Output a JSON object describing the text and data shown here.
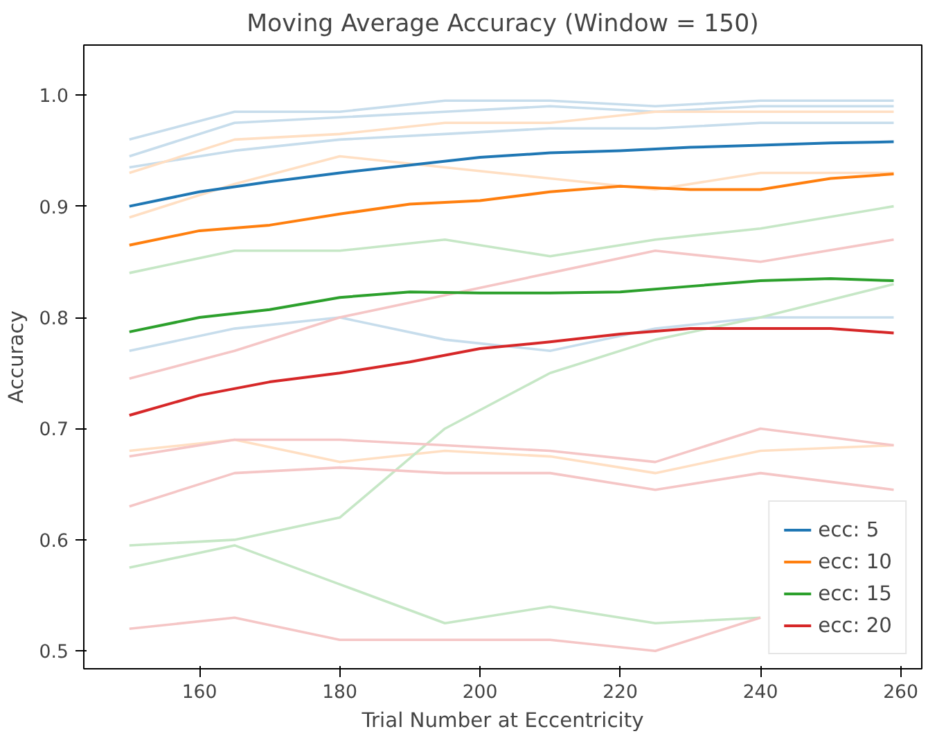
{
  "chart_data": {
    "type": "line",
    "title": "Moving Average Accuracy (Window = 150)",
    "xlabel": "Trial Number at Eccentricity",
    "ylabel": "Accuracy",
    "xlim": [
      143.5,
      263
    ],
    "ylim": [
      0.484,
      1.045
    ],
    "xticks": [
      160,
      180,
      200,
      220,
      240,
      260
    ],
    "yticks": [
      0.5,
      0.6,
      0.7,
      0.8,
      0.9,
      {
        "value": 1.0,
        "label": "1.0"
      }
    ],
    "grid": false,
    "legend": "bottom right",
    "series": [
      {
        "color": "#c7ddec",
        "x": [
          150,
          165,
          180,
          195,
          210,
          225,
          240,
          259
        ],
        "values": [
          0.96,
          0.985,
          0.985,
          0.995,
          0.995,
          0.99,
          0.995,
          0.995
        ]
      },
      {
        "color": "#c7ddec",
        "x": [
          150,
          165,
          180,
          195,
          210,
          225,
          240,
          259
        ],
        "values": [
          0.945,
          0.975,
          0.98,
          0.985,
          0.99,
          0.985,
          0.99,
          0.99
        ]
      },
      {
        "color": "#c7ddec",
        "x": [
          150,
          165,
          180,
          195,
          210,
          225,
          240,
          259
        ],
        "values": [
          0.935,
          0.95,
          0.96,
          0.965,
          0.97,
          0.97,
          0.975,
          0.975
        ]
      },
      {
        "color": "#c7ddec",
        "x": [
          150,
          165,
          180,
          195,
          210,
          225,
          240,
          259
        ],
        "values": [
          0.77,
          0.79,
          0.8,
          0.78,
          0.77,
          0.79,
          0.8,
          0.8
        ]
      },
      {
        "color": "#ffdfc3",
        "x": [
          150,
          165,
          180,
          195,
          210,
          225,
          240,
          259
        ],
        "values": [
          0.93,
          0.96,
          0.965,
          0.975,
          0.975,
          0.985,
          0.985,
          0.985
        ]
      },
      {
        "color": "#ffdfc3",
        "x": [
          150,
          165,
          180,
          195,
          210,
          225,
          240,
          259
        ],
        "values": [
          0.89,
          0.92,
          0.945,
          0.935,
          0.925,
          0.915,
          0.93,
          0.93
        ]
      },
      {
        "color": "#ffdfc3",
        "x": [
          150,
          165,
          180,
          195,
          210,
          225,
          240,
          259
        ],
        "values": [
          0.68,
          0.69,
          0.67,
          0.68,
          0.675,
          0.66,
          0.68,
          0.685
        ]
      },
      {
        "color": "#c6e7c6",
        "x": [
          150,
          165,
          180,
          195,
          210,
          225,
          240,
          259
        ],
        "values": [
          0.84,
          0.86,
          0.86,
          0.87,
          0.855,
          0.87,
          0.88,
          0.9
        ]
      },
      {
        "color": "#c6e7c6",
        "x": [
          150,
          165,
          180,
          195,
          210,
          225,
          240,
          259
        ],
        "values": [
          0.595,
          0.6,
          0.62,
          0.7,
          0.75,
          0.78,
          0.8,
          0.83
        ]
      },
      {
        "color": "#c6e7c6",
        "x": [
          150,
          165,
          180,
          195,
          210,
          225,
          240
        ],
        "values": [
          0.575,
          0.595,
          0.56,
          0.525,
          0.54,
          0.525,
          0.53
        ]
      },
      {
        "color": "#f5c6c6",
        "x": [
          150,
          165,
          180,
          195,
          210,
          225,
          240
        ],
        "values": [
          0.52,
          0.53,
          0.51,
          0.51,
          0.51,
          0.5,
          0.53
        ]
      },
      {
        "color": "#f5c6c6",
        "x": [
          150,
          165,
          180,
          195,
          210,
          225,
          240,
          259
        ],
        "values": [
          0.63,
          0.66,
          0.665,
          0.66,
          0.66,
          0.645,
          0.66,
          0.645
        ]
      },
      {
        "color": "#f5c6c6",
        "x": [
          150,
          165,
          180,
          195,
          210,
          225,
          240,
          259
        ],
        "values": [
          0.675,
          0.69,
          0.69,
          0.685,
          0.68,
          0.67,
          0.7,
          0.685
        ]
      },
      {
        "color": "#f5c6c6",
        "x": [
          150,
          165,
          180,
          195,
          210,
          225,
          240,
          259
        ],
        "values": [
          0.745,
          0.77,
          0.8,
          0.82,
          0.84,
          0.86,
          0.85,
          0.87
        ]
      },
      {
        "name": "ecc: 5",
        "color": "#1f77b4",
        "x": [
          150,
          160,
          170,
          180,
          190,
          200,
          210,
          220,
          230,
          240,
          250,
          259
        ],
        "values": [
          0.9,
          0.913,
          0.922,
          0.93,
          0.937,
          0.944,
          0.948,
          0.95,
          0.953,
          0.955,
          0.957,
          0.958
        ]
      },
      {
        "name": "ecc: 10",
        "color": "#ff7f0e",
        "x": [
          150,
          160,
          170,
          180,
          190,
          200,
          210,
          220,
          230,
          240,
          250,
          259
        ],
        "values": [
          0.865,
          0.878,
          0.883,
          0.893,
          0.902,
          0.905,
          0.913,
          0.918,
          0.915,
          0.915,
          0.925,
          0.929
        ]
      },
      {
        "name": "ecc: 15",
        "color": "#2ca02c",
        "x": [
          150,
          160,
          170,
          180,
          190,
          200,
          210,
          220,
          230,
          240,
          250,
          259
        ],
        "values": [
          0.787,
          0.8,
          0.807,
          0.818,
          0.823,
          0.822,
          0.822,
          0.823,
          0.828,
          0.833,
          0.835,
          0.833
        ]
      },
      {
        "name": "ecc: 20",
        "color": "#d62728",
        "x": [
          150,
          160,
          170,
          180,
          190,
          200,
          210,
          220,
          230,
          240,
          250,
          259
        ],
        "values": [
          0.712,
          0.73,
          0.742,
          0.75,
          0.76,
          0.772,
          0.778,
          0.785,
          0.79,
          0.79,
          0.79,
          0.786
        ]
      }
    ]
  }
}
